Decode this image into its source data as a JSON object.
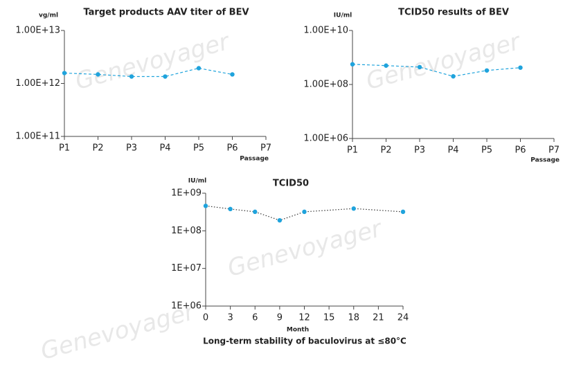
{
  "chart_data": [
    {
      "type": "line",
      "title": "Target products AAV titer of BEV",
      "y_label": "vg/ml",
      "x_label": "Passage",
      "categories": [
        "P1",
        "P2",
        "P3",
        "P4",
        "P5",
        "P6",
        "P7"
      ],
      "series": [
        {
          "color": "#1fa3dc",
          "line_color": "#1fa3dc",
          "line_style": "dashed",
          "values": [
            1570000000000.0,
            1480000000000.0,
            1350000000000.0,
            1350000000000.0,
            1940000000000.0,
            1480000000000.0,
            null
          ]
        }
      ],
      "log_y": true,
      "ylim": [
        100000000000.0,
        10000000000000.0
      ],
      "yticks": [
        {
          "value": 100000000000.0,
          "label": "1.00E+11"
        },
        {
          "value": 1000000000000.0,
          "label": "1.00E+12"
        },
        {
          "value": 10000000000000.0,
          "label": "1.00E+13"
        }
      ],
      "watermark": "Genevoyager"
    },
    {
      "type": "line",
      "title": "TCID50 results of BEV",
      "y_label": "IU/ml",
      "x_label": "Passage",
      "categories": [
        "P1",
        "P2",
        "P3",
        "P4",
        "P5",
        "P6",
        "P7"
      ],
      "series": [
        {
          "color": "#1fa3dc",
          "line_color": "#1fa3dc",
          "line_style": "dashed",
          "values": [
            560000000.0,
            500000000.0,
            440000000.0,
            200000000.0,
            330000000.0,
            420000000.0,
            null
          ]
        }
      ],
      "log_y": true,
      "ylim": [
        1000000.0,
        10000000000.0
      ],
      "yticks": [
        {
          "value": 1000000.0,
          "label": "1.00E+06"
        },
        {
          "value": 100000000.0,
          "label": "1.00E+08"
        },
        {
          "value": 10000000000.0,
          "label": "1.00E+10"
        }
      ],
      "watermark": "Genevoyager"
    },
    {
      "type": "line",
      "title": "TCID50",
      "y_label": "IU/ml",
      "x_label": "Month",
      "subtitle": "Long-term stability of baculovirus at ≤80°C",
      "x": [
        0,
        3,
        6,
        9,
        12,
        18,
        24
      ],
      "series": [
        {
          "color": "#1fa3dc",
          "line_color": "#333333",
          "line_style": "dotted",
          "values": [
            460000000.0,
            380000000.0,
            320000000.0,
            190000000.0,
            320000000.0,
            390000000.0,
            320000000.0
          ]
        }
      ],
      "xlim": [
        0,
        24
      ],
      "xticks": [
        0,
        3,
        6,
        9,
        12,
        15,
        18,
        21,
        24
      ],
      "log_y": true,
      "ylim": [
        1000000.0,
        1000000000.0
      ],
      "yticks": [
        {
          "value": 1000000.0,
          "label": "1E+06"
        },
        {
          "value": 10000000.0,
          "label": "1E+07"
        },
        {
          "value": 100000000.0,
          "label": "1E+08"
        },
        {
          "value": 1000000000.0,
          "label": "1E+09"
        }
      ],
      "watermark": "Genevoyager"
    }
  ]
}
